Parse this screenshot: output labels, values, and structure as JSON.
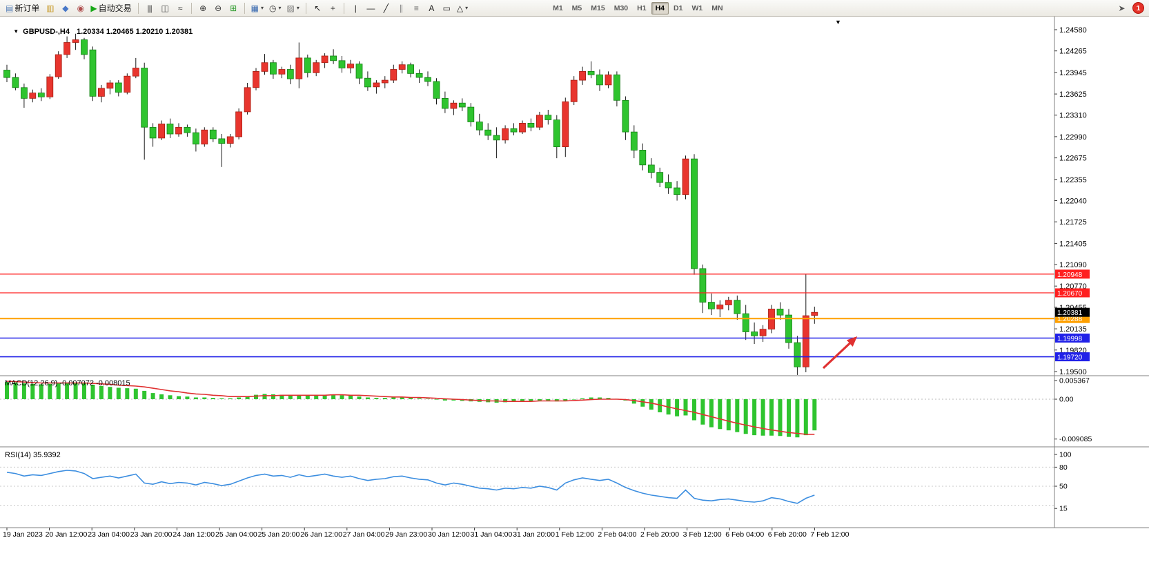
{
  "toolbar": {
    "new_order_label": "新订单",
    "auto_trading_label": "自动交易",
    "timeframes": [
      "M1",
      "M5",
      "M15",
      "M30",
      "H1",
      "H4",
      "D1",
      "W1",
      "MN"
    ],
    "active_timeframe": "H4",
    "notification_badge": "1",
    "items": [
      {
        "kind": "button",
        "name": "new-order-button",
        "icon": "new-order-icon",
        "glyph": "▤",
        "color": "#5b82b8",
        "label": "新订单"
      },
      {
        "kind": "button",
        "name": "market-watch-button",
        "icon": "market-watch-icon",
        "glyph": "▥",
        "color": "#c89a28"
      },
      {
        "kind": "button",
        "name": "navigator-button",
        "icon": "navigator-icon",
        "glyph": "◆",
        "color": "#4878c8"
      },
      {
        "kind": "button",
        "name": "terminal-button",
        "icon": "terminal-icon",
        "glyph": "◉",
        "color": "#b05050"
      },
      {
        "kind": "button",
        "name": "auto-trading-button",
        "icon": "auto-trading-play-icon",
        "glyph": "▶",
        "color": "#18a818",
        "label": "自动交易"
      },
      {
        "kind": "sep"
      },
      {
        "kind": "button",
        "name": "bar-chart-button",
        "icon": "bar-chart-icon",
        "glyph": "|||",
        "color": "#444444"
      },
      {
        "kind": "button",
        "name": "candlestick-chart-button",
        "icon": "candlestick-chart-icon",
        "glyph": "◫",
        "color": "#444444"
      },
      {
        "kind": "button",
        "name": "line-chart-button",
        "icon": "line-chart-icon",
        "glyph": "≈",
        "color": "#444444"
      },
      {
        "kind": "sep"
      },
      {
        "kind": "button",
        "name": "zoom-in-button",
        "icon": "zoom-in-icon",
        "glyph": "⊕",
        "color": "#333333"
      },
      {
        "kind": "button",
        "name": "zoom-out-button",
        "icon": "zoom-out-icon",
        "glyph": "⊖",
        "color": "#333333"
      },
      {
        "kind": "button",
        "name": "tile-windows-button",
        "icon": "tile-windows-icon",
        "glyph": "⊞",
        "color": "#2a9a2a"
      },
      {
        "kind": "sep"
      },
      {
        "kind": "button",
        "name": "new-chart-button",
        "icon": "new-chart-icon",
        "glyph": "▦",
        "color": "#3a6ab0",
        "dropdown": true
      },
      {
        "kind": "button",
        "name": "period-button",
        "icon": "clock-icon",
        "glyph": "◷",
        "color": "#333333",
        "dropdown": true
      },
      {
        "kind": "button",
        "name": "template-button",
        "icon": "template-icon",
        "glyph": "▨",
        "color": "#777777",
        "dropdown": true
      },
      {
        "kind": "sep"
      },
      {
        "kind": "button",
        "name": "cursor-button",
        "icon": "cursor-icon",
        "glyph": "↖",
        "color": "#222222"
      },
      {
        "kind": "button",
        "name": "crosshair-button",
        "icon": "crosshair-icon",
        "glyph": "+",
        "color": "#222222"
      },
      {
        "kind": "sep"
      },
      {
        "kind": "button",
        "name": "vertical-line-button",
        "icon": "vertical-line-icon",
        "glyph": "|",
        "color": "#222222"
      },
      {
        "kind": "button",
        "name": "horizontal-line-button",
        "icon": "horizontal-line-icon",
        "glyph": "—",
        "color": "#222222"
      },
      {
        "kind": "button",
        "name": "trendline-button",
        "icon": "trendline-icon",
        "glyph": "╱",
        "color": "#222222"
      },
      {
        "kind": "button",
        "name": "channel-button",
        "icon": "channel-icon",
        "glyph": "∥",
        "color": "#888888"
      },
      {
        "kind": "button",
        "name": "fibonacci-button",
        "icon": "fibonacci-icon",
        "glyph": "≡",
        "color": "#666666"
      },
      {
        "kind": "button",
        "name": "text-tool-button",
        "icon": "text-icon",
        "glyph": "A",
        "color": "#222222"
      },
      {
        "kind": "button",
        "name": "label-tool-button",
        "icon": "label-icon",
        "glyph": "▭",
        "color": "#222222"
      },
      {
        "kind": "button",
        "name": "shapes-button",
        "icon": "shapes-icon",
        "glyph": "△",
        "color": "#222222",
        "dropdown": true
      },
      {
        "kind": "gap",
        "w": 110
      },
      {
        "kind": "tf"
      },
      {
        "kind": "right"
      },
      {
        "kind": "button",
        "name": "chart-shift-button",
        "icon": "pointer-icon",
        "glyph": "➤",
        "color": "#555555"
      },
      {
        "kind": "badge",
        "name": "notification-badge",
        "label": "1"
      }
    ]
  },
  "chart": {
    "dropdown_glyph": "▼",
    "title": "GBPUSD-,H4",
    "ohlc_text": "1.20334 1.20465 1.20210 1.20381",
    "macd_label": "MACD(12,26,9) -0.007072 -0.008015",
    "rsi_label": "RSI(14) 35.9392"
  },
  "chart_data": {
    "type": "candlestick",
    "symbol": "GBPUSD-",
    "timeframe": "H4",
    "current": {
      "open": 1.20334,
      "high": 1.20465,
      "low": 1.2021,
      "close": 1.20381
    },
    "current_price_label": "1.20381",
    "scroll_marker_glyph": "▼",
    "price_axis_ticks": [
      "1.24580",
      "1.24265",
      "1.23945",
      "1.23625",
      "1.23310",
      "1.22990",
      "1.22675",
      "1.22355",
      "1.22040",
      "1.21725",
      "1.21405",
      "1.21090",
      "1.20770",
      "1.20455",
      "1.20135",
      "1.19820",
      "1.19500"
    ],
    "time_axis_ticks": [
      "19 Jan 2023",
      "20 Jan 12:00",
      "23 Jan 04:00",
      "23 Jan 20:00",
      "24 Jan 12:00",
      "25 Jan 04:00",
      "25 Jan 20:00",
      "26 Jan 12:00",
      "27 Jan 04:00",
      "29 Jan 23:00",
      "30 Jan 12:00",
      "31 Jan 04:00",
      "31 Jan 20:00",
      "1 Feb 12:00",
      "2 Feb 04:00",
      "2 Feb 20:00",
      "3 Feb 12:00",
      "6 Feb 04:00",
      "6 Feb 20:00",
      "7 Feb 12:00"
    ],
    "horizontal_lines": [
      {
        "price": 1.20948,
        "color": "#ff2020",
        "width": 1.2,
        "label": "1.20948",
        "name": "resistance-line-upper"
      },
      {
        "price": 1.2067,
        "color": "#ff2020",
        "width": 1.2,
        "label": "1.20670",
        "name": "resistance-line-lower"
      },
      {
        "price": 1.20288,
        "color": "#ffa000",
        "width": 2,
        "label": "1.20288",
        "name": "pivot-line"
      },
      {
        "price": 1.19998,
        "color": "#2121e8",
        "width": 1.6,
        "label": "1.19998",
        "name": "support-line-upper"
      },
      {
        "price": 1.1972,
        "color": "#2121e8",
        "width": 1.6,
        "label": "1.19720",
        "name": "support-line-lower"
      }
    ],
    "annotation_arrow": {
      "from": [
        1193,
        533
      ],
      "to": [
        1240,
        489
      ],
      "color": "#e03131"
    },
    "colors": {
      "bull": "#e8352e",
      "bull_border": "#a51d12",
      "bear": "#2fc42f",
      "bear_border": "#158015",
      "wick": "#1a1a1a",
      "macd_hist": "#2fc42f",
      "macd_signal": "#e03131",
      "rsi_line": "#3c8ee0",
      "background": "#ffffff"
    },
    "candles": [
      [
        1.2398,
        1.2406,
        1.238,
        1.2387
      ],
      [
        1.2387,
        1.2393,
        1.2368,
        1.2372
      ],
      [
        1.2372,
        1.2378,
        1.2342,
        1.2356
      ],
      [
        1.2356,
        1.2369,
        1.235,
        1.2364
      ],
      [
        1.2364,
        1.2371,
        1.2352,
        1.2358
      ],
      [
        1.2358,
        1.2392,
        1.2355,
        1.2388
      ],
      [
        1.2388,
        1.2426,
        1.2385,
        1.2421
      ],
      [
        1.2421,
        1.2448,
        1.2416,
        1.2439
      ],
      [
        1.2439,
        1.2452,
        1.2428,
        1.2443
      ],
      [
        1.2443,
        1.2446,
        1.2414,
        1.2421
      ],
      [
        1.2428,
        1.2433,
        1.2352,
        1.2359
      ],
      [
        1.2359,
        1.2376,
        1.235,
        1.2371
      ],
      [
        1.2371,
        1.2383,
        1.2362,
        1.2379
      ],
      [
        1.2379,
        1.2383,
        1.2359,
        1.2365
      ],
      [
        1.2365,
        1.2393,
        1.2362,
        1.2389
      ],
      [
        1.2389,
        1.2416,
        1.2386,
        1.2401
      ],
      [
        1.2401,
        1.2409,
        1.2265,
        1.2313
      ],
      [
        1.2313,
        1.2319,
        1.2284,
        1.2297
      ],
      [
        1.2297,
        1.2323,
        1.2294,
        1.2318
      ],
      [
        1.2318,
        1.2326,
        1.2297,
        1.2303
      ],
      [
        1.2303,
        1.2319,
        1.2299,
        1.2313
      ],
      [
        1.2313,
        1.2317,
        1.2299,
        1.2305
      ],
      [
        1.2305,
        1.2311,
        1.2277,
        1.2288
      ],
      [
        1.2288,
        1.2313,
        1.2284,
        1.2309
      ],
      [
        1.2309,
        1.2313,
        1.2291,
        1.2296
      ],
      [
        1.2296,
        1.2303,
        1.2254,
        1.2289
      ],
      [
        1.2289,
        1.2303,
        1.2283,
        1.2299
      ],
      [
        1.2299,
        1.2341,
        1.2295,
        1.2336
      ],
      [
        1.2336,
        1.2379,
        1.2332,
        1.2372
      ],
      [
        1.2372,
        1.2401,
        1.2368,
        1.2396
      ],
      [
        1.2396,
        1.2422,
        1.2391,
        1.2409
      ],
      [
        1.2409,
        1.2413,
        1.2385,
        1.2392
      ],
      [
        1.2392,
        1.2403,
        1.2386,
        1.2399
      ],
      [
        1.2399,
        1.2406,
        1.2377,
        1.2385
      ],
      [
        1.2385,
        1.2439,
        1.2371,
        1.2416
      ],
      [
        1.2416,
        1.2421,
        1.2387,
        1.2394
      ],
      [
        1.2394,
        1.2413,
        1.2389,
        1.2409
      ],
      [
        1.2409,
        1.2423,
        1.2401,
        1.2419
      ],
      [
        1.2419,
        1.2429,
        1.2407,
        1.2412
      ],
      [
        1.2412,
        1.2419,
        1.2394,
        1.2401
      ],
      [
        1.2401,
        1.2413,
        1.2393,
        1.2407
      ],
      [
        1.2407,
        1.2411,
        1.2377,
        1.2386
      ],
      [
        1.2386,
        1.2396,
        1.2367,
        1.2373
      ],
      [
        1.2373,
        1.2383,
        1.2363,
        1.2379
      ],
      [
        1.2379,
        1.2389,
        1.2371,
        1.2383
      ],
      [
        1.2383,
        1.2406,
        1.2379,
        1.2399
      ],
      [
        1.2399,
        1.2411,
        1.2393,
        1.2406
      ],
      [
        1.2406,
        1.2409,
        1.2387,
        1.2393
      ],
      [
        1.2393,
        1.2399,
        1.2379,
        1.2387
      ],
      [
        1.2387,
        1.2396,
        1.2374,
        1.2381
      ],
      [
        1.2381,
        1.2386,
        1.2347,
        1.2356
      ],
      [
        1.2356,
        1.2366,
        1.2334,
        1.2341
      ],
      [
        1.2341,
        1.2353,
        1.2331,
        1.2349
      ],
      [
        1.2349,
        1.2356,
        1.2337,
        1.2343
      ],
      [
        1.2343,
        1.2349,
        1.2314,
        1.2321
      ],
      [
        1.2321,
        1.2333,
        1.2301,
        1.2309
      ],
      [
        1.2309,
        1.2319,
        1.2294,
        1.2301
      ],
      [
        1.2301,
        1.2313,
        1.2267,
        1.2294
      ],
      [
        1.2294,
        1.2316,
        1.2289,
        1.2311
      ],
      [
        1.2311,
        1.2319,
        1.2301,
        1.2306
      ],
      [
        1.2306,
        1.2323,
        1.2303,
        1.2319
      ],
      [
        1.2319,
        1.2326,
        1.2307,
        1.2313
      ],
      [
        1.2313,
        1.2336,
        1.2309,
        1.2331
      ],
      [
        1.2331,
        1.2339,
        1.2317,
        1.2324
      ],
      [
        1.2324,
        1.2331,
        1.2267,
        1.2284
      ],
      [
        1.2284,
        1.2357,
        1.2269,
        1.2351
      ],
      [
        1.2351,
        1.2389,
        1.2346,
        1.2383
      ],
      [
        1.2383,
        1.2403,
        1.2376,
        1.2396
      ],
      [
        1.2396,
        1.2411,
        1.2386,
        1.2391
      ],
      [
        1.2391,
        1.2399,
        1.2367,
        1.2376
      ],
      [
        1.2376,
        1.2396,
        1.2371,
        1.2391
      ],
      [
        1.2391,
        1.2396,
        1.2344,
        1.2353
      ],
      [
        1.2353,
        1.2359,
        1.2294,
        1.2306
      ],
      [
        1.2306,
        1.2316,
        1.2267,
        1.2279
      ],
      [
        1.2279,
        1.2289,
        1.2249,
        1.2257
      ],
      [
        1.2257,
        1.2267,
        1.2237,
        1.2246
      ],
      [
        1.2246,
        1.2253,
        1.2224,
        1.2231
      ],
      [
        1.2231,
        1.2243,
        1.2214,
        1.2223
      ],
      [
        1.2223,
        1.2233,
        1.2204,
        1.2213
      ],
      [
        1.2213,
        1.2271,
        1.2206,
        1.2266
      ],
      [
        1.2266,
        1.2273,
        1.2094,
        1.2103
      ],
      [
        1.2103,
        1.2109,
        1.2037,
        1.2053
      ],
      [
        1.2053,
        1.2066,
        1.2034,
        1.2043
      ],
      [
        1.2043,
        1.2056,
        1.2031,
        1.2049
      ],
      [
        1.2049,
        1.2061,
        1.2041,
        1.2056
      ],
      [
        1.2056,
        1.2063,
        1.2027,
        1.2036
      ],
      [
        1.2036,
        1.2049,
        1.1997,
        1.2009
      ],
      [
        1.2009,
        1.2023,
        1.1991,
        1.2003
      ],
      [
        1.2003,
        1.2019,
        1.1994,
        1.2013
      ],
      [
        1.2013,
        1.2049,
        1.2007,
        1.2043
      ],
      [
        1.2043,
        1.2053,
        1.2027,
        1.2034
      ],
      [
        1.2034,
        1.2043,
        1.1984,
        1.1993
      ],
      [
        1.1993,
        1.2003,
        1.1945,
        1.1957
      ],
      [
        1.1957,
        1.2095,
        1.1949,
        1.2033
      ],
      [
        1.20334,
        1.20465,
        1.2021,
        1.20381
      ]
    ],
    "macd": {
      "params": "12,26,9",
      "value": -0.007072,
      "signal_value": -0.008015,
      "axis_ticks": [
        "0.005367",
        "0.00",
        "-0.009085"
      ],
      "histogram": [
        0.0039,
        0.0038,
        0.0036,
        0.0035,
        0.0034,
        0.0035,
        0.0037,
        0.0038,
        0.0038,
        0.0036,
        0.0033,
        0.003,
        0.0028,
        0.0026,
        0.0025,
        0.0024,
        0.0019,
        0.0014,
        0.0011,
        0.0009,
        0.0007,
        0.0006,
        0.0004,
        0.0004,
        0.0003,
        0.0002,
        0.0002,
        0.0004,
        0.0007,
        0.001,
        0.0012,
        0.0011,
        0.001,
        0.0009,
        0.001,
        0.0009,
        0.0009,
        0.001,
        0.001,
        0.0009,
        0.0008,
        0.0006,
        0.0004,
        0.0003,
        0.0003,
        0.0004,
        0.0004,
        0.0003,
        0.0002,
        0.0001,
        -0.0001,
        -0.0003,
        -0.0003,
        -0.0004,
        -0.0005,
        -0.0006,
        -0.0007,
        -0.0008,
        -0.0007,
        -0.0006,
        -0.0005,
        -0.0004,
        -0.0003,
        -0.0003,
        -0.0005,
        -0.0004,
        -0.0001,
        0.0002,
        0.0004,
        0.0004,
        0.0003,
        0.0001,
        -0.0003,
        -0.001,
        -0.0017,
        -0.0024,
        -0.003,
        -0.0035,
        -0.0039,
        -0.0037,
        -0.0048,
        -0.0058,
        -0.0064,
        -0.0068,
        -0.0071,
        -0.0075,
        -0.0079,
        -0.0082,
        -0.0083,
        -0.0083,
        -0.0084,
        -0.0086,
        -0.0087,
        -0.0082,
        -0.0071
      ],
      "signal": [
        0.0041,
        0.004,
        0.0039,
        0.0038,
        0.0037,
        0.0037,
        0.0037,
        0.0037,
        0.0037,
        0.0037,
        0.0036,
        0.0035,
        0.0034,
        0.0032,
        0.0031,
        0.003,
        0.0028,
        0.0025,
        0.0022,
        0.0019,
        0.0017,
        0.0014,
        0.0012,
        0.0011,
        0.0009,
        0.0008,
        0.0006,
        0.0006,
        0.0006,
        0.0007,
        0.0008,
        0.0008,
        0.0009,
        0.0009,
        0.0009,
        0.0009,
        0.0009,
        0.0009,
        0.001,
        0.001,
        0.0009,
        0.0009,
        0.0008,
        0.0007,
        0.0006,
        0.0005,
        0.0005,
        0.0004,
        0.0004,
        0.0003,
        0.0002,
        0.0001,
        0.0,
        -0.0001,
        -0.0002,
        -0.0003,
        -0.0004,
        -0.0004,
        -0.0005,
        -0.0005,
        -0.0005,
        -0.0005,
        -0.0004,
        -0.0004,
        -0.0004,
        -0.0004,
        -0.0003,
        -0.0002,
        -0.0001,
        0.0,
        0.0,
        0.0,
        -0.0001,
        -0.0003,
        -0.0006,
        -0.0009,
        -0.0013,
        -0.0018,
        -0.0022,
        -0.0026,
        -0.003,
        -0.0035,
        -0.004,
        -0.0045,
        -0.005,
        -0.0055,
        -0.0059,
        -0.0063,
        -0.0067,
        -0.007,
        -0.0073,
        -0.0076,
        -0.0078,
        -0.008,
        -0.008
      ]
    },
    "rsi": {
      "period": 14,
      "value": 35.9392,
      "axis_ticks": [
        "100",
        "80",
        "50",
        "15"
      ],
      "levels": [
        80,
        50,
        20
      ],
      "values": [
        72,
        70,
        66,
        68,
        67,
        70,
        73,
        75,
        74,
        70,
        62,
        64,
        66,
        63,
        66,
        69,
        55,
        53,
        57,
        54,
        56,
        55,
        52,
        56,
        54,
        51,
        53,
        58,
        63,
        67,
        69,
        66,
        67,
        64,
        68,
        65,
        67,
        69,
        66,
        64,
        66,
        62,
        59,
        61,
        62,
        65,
        66,
        63,
        61,
        60,
        55,
        52,
        55,
        53,
        50,
        47,
        46,
        44,
        47,
        46,
        48,
        47,
        50,
        48,
        44,
        55,
        60,
        63,
        61,
        59,
        61,
        55,
        48,
        43,
        39,
        36,
        34,
        32,
        31,
        44,
        31,
        28,
        27,
        29,
        30,
        28,
        26,
        25,
        27,
        32,
        30,
        26,
        23,
        31,
        36
      ]
    }
  }
}
